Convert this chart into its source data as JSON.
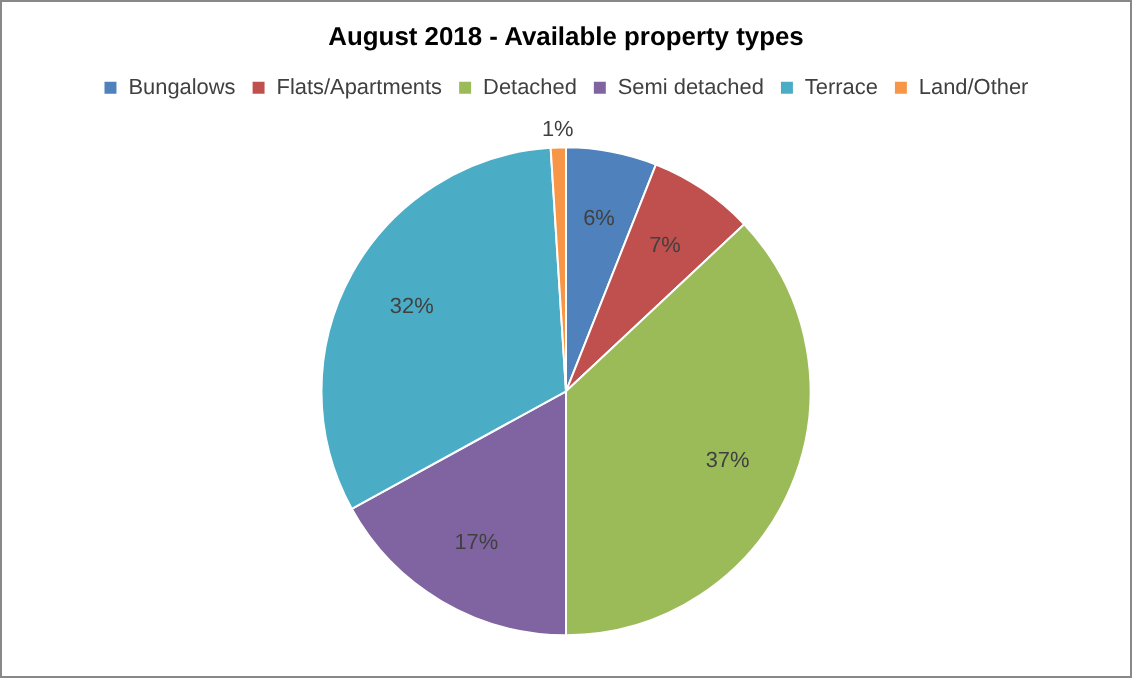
{
  "chart_data": {
    "type": "pie",
    "title": "August 2018 - Available property types",
    "categories": [
      "Bungalows",
      "Flats/Apartments",
      "Detached",
      "Semi detached",
      "Terrace",
      "Land/Other"
    ],
    "values": [
      6,
      7,
      37,
      17,
      32,
      1
    ],
    "colors": [
      "#4f81bd",
      "#c0504d",
      "#9bbb59",
      "#8064a2",
      "#4bacc6",
      "#f79646"
    ],
    "value_labels": [
      "6%",
      "7%",
      "37%",
      "17%",
      "32%",
      "1%"
    ],
    "legend": "top"
  }
}
